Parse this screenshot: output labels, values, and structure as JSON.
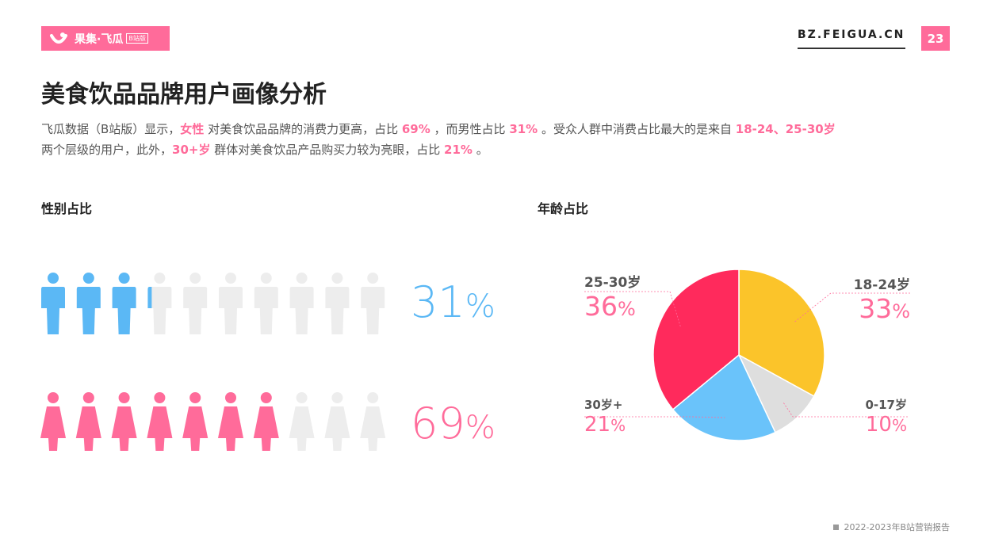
{
  "header": {
    "logo_text": "果集·飞瓜",
    "logo_tag": "B站版",
    "site_url": "BZ.FEIGUA.CN",
    "page_number": "23"
  },
  "title": "美食饮品品牌用户画像分析",
  "description": {
    "p1": "飞瓜数据（B站版）显示，",
    "h1": "女性",
    "p2": " 对美食饮品品牌的消费力更高，占比 ",
    "h2": "69%",
    "p3": " ，而男性占比 ",
    "h3": "31%",
    "p4": " 。受众人群中消费占比最大的是来自 ",
    "h4": "18-24、25-30岁",
    "p5": "两个层级的用户，此外，",
    "h5": "30+岁",
    "p6": " 群体对美食饮品产品购买力较为亮眼，占比 ",
    "h6": "21%",
    "p7": " 。"
  },
  "gender_section": {
    "label": "性别占比"
  },
  "age_section": {
    "label": "年龄占比"
  },
  "chart_data": [
    {
      "type": "pictogram",
      "title": "性别占比",
      "series": [
        {
          "name": "男性",
          "value": 31,
          "display_value": "31",
          "unit": "%",
          "color": "#5bb8f5"
        },
        {
          "name": "女性",
          "value": 69,
          "display_value": "69",
          "unit": "%",
          "color": "#ff6b9a"
        }
      ],
      "icons_per_row": 10,
      "empty_color": "#ededed"
    },
    {
      "type": "pie",
      "title": "年龄占比",
      "categories": [
        "18-24岁",
        "0-17岁",
        "30岁+",
        "25-30岁"
      ],
      "values": [
        33,
        10,
        21,
        36
      ],
      "display_values": [
        "33",
        "10",
        "21",
        "36"
      ],
      "unit": "%",
      "colors": [
        "#fbc42a",
        "#dedede",
        "#6ac3fa",
        "#ff2a5c"
      ]
    }
  ],
  "footer": {
    "text": "2022-2023年B站营销报告"
  },
  "colors": {
    "accent": "#ff6b9a",
    "male": "#5bb8f5",
    "female": "#ff6b9a"
  }
}
